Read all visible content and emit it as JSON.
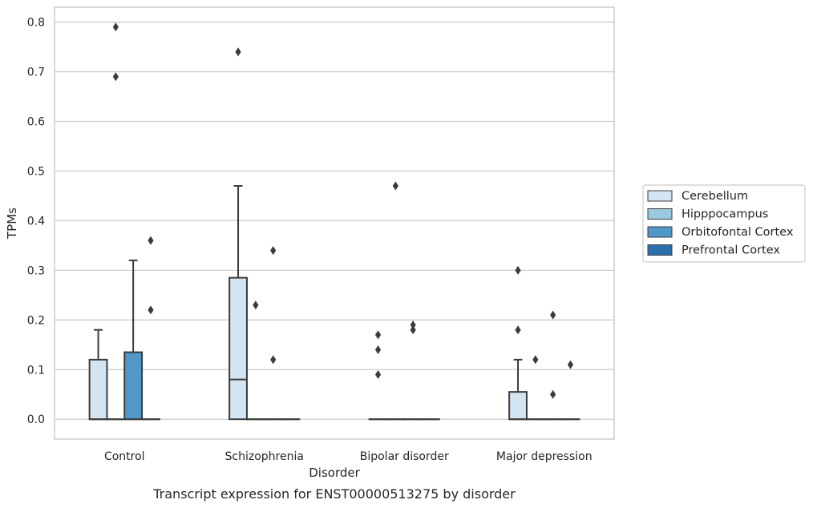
{
  "chart_data": {
    "type": "box",
    "caption": "Transcript expression for ENST00000513275 by disorder",
    "xlabel": "Disorder",
    "ylabel": "TPMs",
    "ylim": [
      -0.04,
      0.83
    ],
    "yticks": [
      0.0,
      0.1,
      0.2,
      0.3,
      0.4,
      0.5,
      0.6,
      0.7,
      0.8
    ],
    "ytick_labels": [
      "0.0",
      "0.1",
      "0.2",
      "0.3",
      "0.4",
      "0.5",
      "0.6",
      "0.7",
      "0.8"
    ],
    "grid": "horizontal",
    "legend_position": "right",
    "categories": [
      "Control",
      "Schizophrenia",
      "Bipolar disorder",
      "Major depression"
    ],
    "series": [
      {
        "name": "Cerebellum",
        "color": "#d3e4f3",
        "boxes": [
          {
            "q1": 0.0,
            "median": 0.0,
            "q3": 0.12,
            "whisker_low": 0.0,
            "whisker_high": 0.18,
            "outliers": []
          },
          {
            "q1": 0.0,
            "median": 0.08,
            "q3": 0.285,
            "whisker_low": 0.0,
            "whisker_high": 0.47,
            "outliers": [
              0.74
            ]
          },
          {
            "q1": 0.0,
            "median": 0.0,
            "q3": 0.0,
            "whisker_low": 0.0,
            "whisker_high": 0.0,
            "outliers": [
              0.09,
              0.14,
              0.17
            ]
          },
          {
            "q1": 0.0,
            "median": 0.0,
            "q3": 0.055,
            "whisker_low": 0.0,
            "whisker_high": 0.12,
            "outliers": [
              0.18,
              0.3
            ]
          }
        ]
      },
      {
        "name": "Hipppocampus",
        "color": "#9ac8e0",
        "boxes": [
          {
            "q1": 0.0,
            "median": 0.0,
            "q3": 0.0,
            "whisker_low": 0.0,
            "whisker_high": 0.0,
            "outliers": [
              0.69,
              0.79
            ]
          },
          {
            "q1": 0.0,
            "median": 0.0,
            "q3": 0.0,
            "whisker_low": 0.0,
            "whisker_high": 0.0,
            "outliers": [
              0.23
            ]
          },
          {
            "q1": 0.0,
            "median": 0.0,
            "q3": 0.0,
            "whisker_low": 0.0,
            "whisker_high": 0.0,
            "outliers": [
              0.47
            ]
          },
          {
            "q1": 0.0,
            "median": 0.0,
            "q3": 0.0,
            "whisker_low": 0.0,
            "whisker_high": 0.0,
            "outliers": [
              0.12
            ]
          }
        ]
      },
      {
        "name": "Orbitofontal Cortex",
        "color": "#5198c8",
        "boxes": [
          {
            "q1": 0.0,
            "median": 0.0,
            "q3": 0.135,
            "whisker_low": 0.0,
            "whisker_high": 0.32,
            "outliers": []
          },
          {
            "q1": 0.0,
            "median": 0.0,
            "q3": 0.0,
            "whisker_low": 0.0,
            "whisker_high": 0.0,
            "outliers": [
              0.12,
              0.34
            ]
          },
          {
            "q1": 0.0,
            "median": 0.0,
            "q3": 0.0,
            "whisker_low": 0.0,
            "whisker_high": 0.0,
            "outliers": [
              0.18,
              0.19
            ]
          },
          {
            "q1": 0.0,
            "median": 0.0,
            "q3": 0.0,
            "whisker_low": 0.0,
            "whisker_high": 0.0,
            "outliers": [
              0.05,
              0.21
            ]
          }
        ]
      },
      {
        "name": "Prefrontal Cortex",
        "color": "#2c6fae",
        "boxes": [
          {
            "q1": 0.0,
            "median": 0.0,
            "q3": 0.0,
            "whisker_low": 0.0,
            "whisker_high": 0.0,
            "outliers": [
              0.22,
              0.36
            ]
          },
          {
            "q1": 0.0,
            "median": 0.0,
            "q3": 0.0,
            "whisker_low": 0.0,
            "whisker_high": 0.0,
            "outliers": []
          },
          {
            "q1": 0.0,
            "median": 0.0,
            "q3": 0.0,
            "whisker_low": 0.0,
            "whisker_high": 0.0,
            "outliers": []
          },
          {
            "q1": 0.0,
            "median": 0.0,
            "q3": 0.0,
            "whisker_low": 0.0,
            "whisker_high": 0.0,
            "outliers": [
              0.11
            ]
          }
        ]
      }
    ]
  }
}
